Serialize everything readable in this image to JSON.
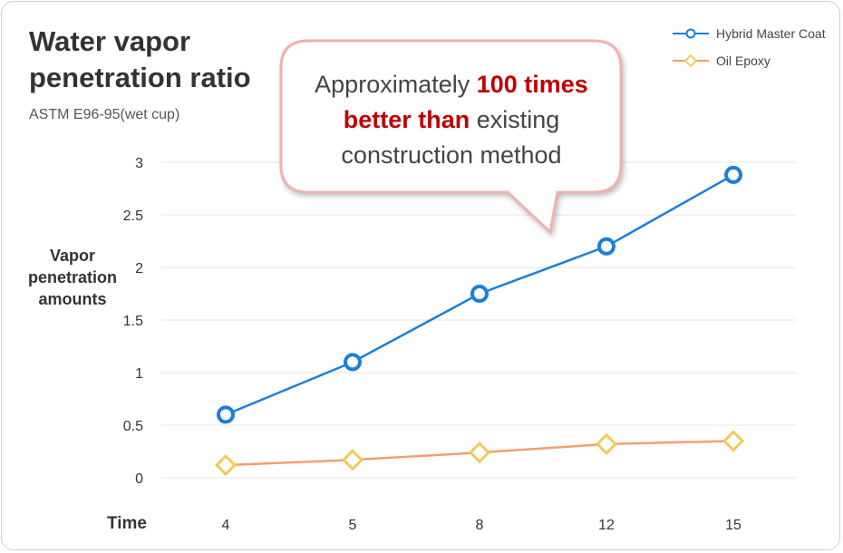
{
  "chart_data": {
    "type": "line",
    "title": "Water vapor penetration ratio",
    "subtitle": "ASTM E96-95(wet cup)",
    "xlabel": "Time",
    "ylabel": "Vapor penetration amounts",
    "categories": [
      "4",
      "5",
      "8",
      "12",
      "15"
    ],
    "ylim": [
      0,
      3
    ],
    "yticks": [
      "0",
      "0.5",
      "1",
      "1.5",
      "2",
      "2.5",
      "3"
    ],
    "grid": true,
    "legend_position": "top-right",
    "series": [
      {
        "name": "Hybrid Master Coat",
        "color": "#1a7fd8",
        "marker": "circle",
        "values": [
          0.6,
          1.1,
          1.75,
          2.2,
          2.88
        ]
      },
      {
        "name": "Oil Epoxy",
        "color": "#f0a070",
        "marker_color": "#f5c85a",
        "marker": "diamond",
        "values": [
          0.12,
          0.17,
          0.24,
          0.32,
          0.35
        ]
      }
    ],
    "annotation": {
      "prefix": "Approximately ",
      "highlight": "100 times better than",
      "suffix": " existing construction method"
    }
  }
}
